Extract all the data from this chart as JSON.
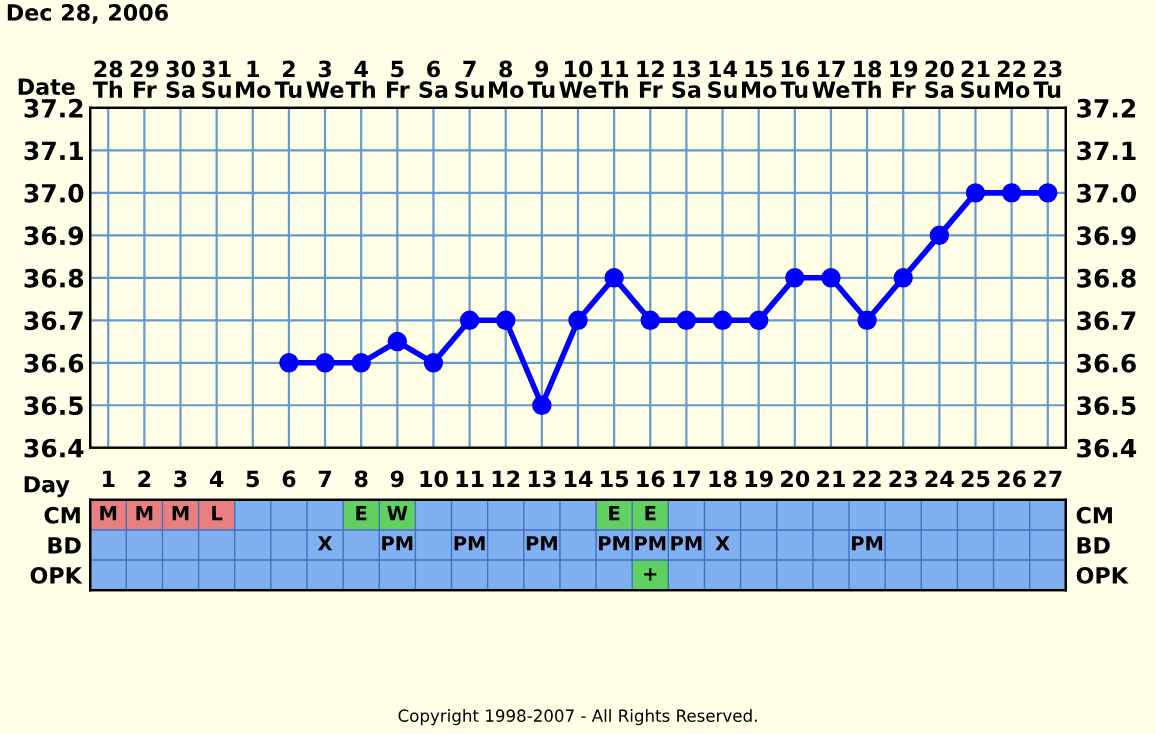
{
  "chart_data": [
    {
      "type": "line",
      "annotations": [
        "Dec 28, 2006"
      ],
      "xlabel": "Date",
      "categories": [
        "28\nTh",
        "29\nFr",
        "30\nSa",
        "31\nSu",
        "1\nMo",
        "2\nTu",
        "3\nWe",
        "4\nTh",
        "5\nFr",
        "6\nSa",
        "7\nSu",
        "8\nMo",
        "9\nTu",
        "10\nWe",
        "11\nTh",
        "12\nFr",
        "13\nSa",
        "14\nSu",
        "15\nMo",
        "16\nTu",
        "17\nWe",
        "18\nTh",
        "19\nFr",
        "20\nSa",
        "21\nSu",
        "22\nMo",
        "23\nTu"
      ],
      "series": [
        {
          "color": "#0000ff",
          "values": [
            null,
            null,
            null,
            null,
            null,
            36.6,
            36.6,
            36.6,
            36.65,
            36.6,
            36.7,
            36.7,
            36.5,
            36.7,
            36.8,
            36.7,
            36.7,
            36.7,
            36.7,
            36.8,
            36.8,
            36.7,
            36.8,
            36.9,
            37.0,
            37.0,
            37.0
          ]
        }
      ],
      "ylim": [
        36.4,
        37.2
      ],
      "yticks": [
        36.4,
        36.5,
        36.6,
        36.7,
        36.8,
        36.9,
        {
          "value": 37.0,
          "label": "37.0"
        },
        37.1,
        37.2
      ],
      "y2lim": [
        36.4,
        37.2
      ],
      "y2ticks": [
        36.4,
        36.5,
        36.6,
        36.7,
        36.8,
        36.9,
        {
          "value": 37.0,
          "label": "37.0"
        },
        37.1,
        37.2
      ],
      "grid": true,
      "marker": "circle",
      "line_style": "solid"
    },
    {
      "type": "heatmap",
      "xlabel": "Day",
      "annotations": [
        "Copyright 1998-2007 - All Rights Reserved."
      ],
      "categories": [
        "1",
        "2",
        "3",
        "4",
        "5",
        "6",
        "7",
        "8",
        "9",
        "10",
        "11",
        "12",
        "13",
        "14",
        "15",
        "16",
        "17",
        "18",
        "19",
        "20",
        "21",
        "22",
        "23",
        "24",
        "25",
        "26",
        "27"
      ],
      "y_categories": [
        "CM",
        "BD",
        "OPK"
      ],
      "y2_categories": [
        "CM",
        "BD",
        "OPK"
      ],
      "cells": [
        [
          null,
          null,
          null,
          null,
          null,
          null,
          null,
          null,
          null,
          null,
          null,
          null,
          null,
          null,
          null,
          null,
          null,
          null,
          null,
          null,
          null,
          null,
          null,
          null,
          null,
          null,
          null
        ],
        [
          null,
          null,
          null,
          null,
          null,
          null,
          null,
          null,
          null,
          null,
          null,
          null,
          null,
          null,
          null,
          null,
          null,
          null,
          null,
          null,
          null,
          null,
          null,
          null,
          null,
          null,
          null
        ],
        [
          null,
          null,
          null,
          null,
          null,
          null,
          null,
          null,
          null,
          null,
          null,
          null,
          null,
          null,
          null,
          null,
          null,
          null,
          null,
          null,
          null,
          null,
          null,
          null,
          null,
          null,
          null
        ]
      ],
      "cell_labels": [
        [
          "M",
          "M",
          "M",
          "L",
          null,
          null,
          null,
          "E",
          "W",
          null,
          null,
          null,
          null,
          null,
          "E",
          "E",
          null,
          null,
          null,
          null,
          null,
          null,
          null,
          null,
          null,
          null,
          null
        ],
        [
          null,
          null,
          null,
          null,
          null,
          null,
          "X",
          null,
          "PM",
          null,
          "PM",
          null,
          "PM",
          null,
          "PM",
          "PM",
          "PM",
          "X",
          null,
          null,
          null,
          "PM",
          null,
          null,
          null,
          null,
          null
        ],
        [
          null,
          null,
          null,
          null,
          null,
          null,
          null,
          null,
          null,
          null,
          null,
          null,
          null,
          null,
          null,
          "+",
          null,
          null,
          null,
          null,
          null,
          null,
          null,
          null,
          null,
          null,
          null
        ]
      ],
      "colors": [
        [
          "#e88080",
          "#e88080",
          "#e88080",
          "#e88080",
          null,
          null,
          null,
          "#60d060",
          "#60d060",
          null,
          null,
          null,
          null,
          null,
          "#60d060",
          "#60d060",
          null,
          null,
          null,
          null,
          null,
          null,
          null,
          null,
          null,
          null,
          null
        ],
        [
          null,
          null,
          null,
          null,
          null,
          null,
          null,
          null,
          null,
          null,
          null,
          null,
          null,
          null,
          null,
          null,
          null,
          null,
          null,
          null,
          null,
          null,
          null,
          null,
          null,
          null,
          null
        ],
        [
          null,
          null,
          null,
          null,
          null,
          null,
          null,
          null,
          null,
          null,
          null,
          null,
          null,
          null,
          null,
          "#60d060",
          null,
          null,
          null,
          null,
          null,
          null,
          null,
          null,
          null,
          null,
          null
        ]
      ]
    }
  ]
}
